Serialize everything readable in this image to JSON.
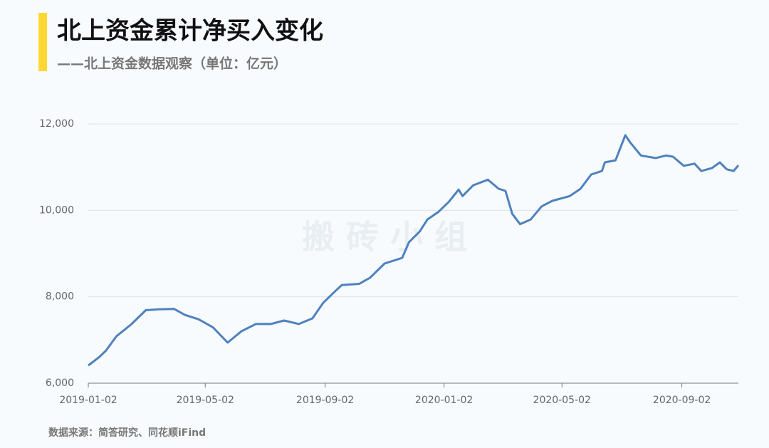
{
  "chart_data": {
    "type": "line",
    "title": "北上资金累计净买入变化",
    "subtitle": "——北上资金数据观察（单位：亿元）",
    "watermark": "搬 砖 小 组",
    "source": "数据来源：简答研究、同花顺iFind",
    "x": [
      "2019-01-02",
      "2019-01-13",
      "2019-01-20",
      "2019-01-31",
      "2019-02-15",
      "2019-03-02",
      "2019-03-16",
      "2019-03-31",
      "2019-04-11",
      "2019-04-25",
      "2019-05-10",
      "2019-05-25",
      "2019-06-08",
      "2019-06-23",
      "2019-07-08",
      "2019-07-22",
      "2019-08-06",
      "2019-08-20",
      "2019-08-31",
      "2019-09-10",
      "2019-09-19",
      "2019-10-07",
      "2019-10-18",
      "2019-11-02",
      "2019-11-20",
      "2019-11-27",
      "2019-12-08",
      "2019-12-16",
      "2019-12-27",
      "2020-01-07",
      "2020-01-17",
      "2020-01-21",
      "2020-02-01",
      "2020-02-16",
      "2020-02-27",
      "2020-03-05",
      "2020-03-12",
      "2020-03-20",
      "2020-03-31",
      "2020-04-11",
      "2020-04-22",
      "2020-05-10",
      "2020-05-21",
      "2020-06-01",
      "2020-06-12",
      "2020-06-15",
      "2020-06-26",
      "2020-07-06",
      "2020-07-11",
      "2020-07-22",
      "2020-08-06",
      "2020-08-17",
      "2020-08-24",
      "2020-09-04",
      "2020-09-15",
      "2020-09-22",
      "2020-10-03",
      "2020-10-11",
      "2020-10-18",
      "2020-10-25",
      "2020-10-30"
    ],
    "series": [
      {
        "color": "#4f81bd",
        "values": [
          6410,
          6600,
          6750,
          7090,
          7360,
          7690,
          7710,
          7720,
          7580,
          7480,
          7290,
          6940,
          7200,
          7370,
          7370,
          7450,
          7370,
          7500,
          7860,
          8080,
          8270,
          8300,
          8440,
          8770,
          8900,
          9260,
          9510,
          9790,
          9960,
          10200,
          10480,
          10330,
          10580,
          10710,
          10500,
          10450,
          9920,
          9680,
          9790,
          10090,
          10220,
          10330,
          10500,
          10830,
          10910,
          11110,
          11160,
          11740,
          11570,
          11270,
          11210,
          11270,
          11240,
          11030,
          11080,
          10910,
          10980,
          11110,
          10950,
          10910,
          11040
        ]
      }
    ],
    "xlim": [
      "2019-01-02",
      "2020-10-30"
    ],
    "xticks": [
      "2019-01-02",
      "2019-05-02",
      "2019-09-02",
      "2020-01-02",
      "2020-05-02",
      "2020-09-02"
    ],
    "ylim": [
      6000,
      12000
    ],
    "yticks": [
      {
        "value": 6000,
        "label": "6,000"
      },
      {
        "value": 8000,
        "label": "8,000"
      },
      {
        "value": 10000,
        "label": "10,000"
      },
      {
        "value": 12000,
        "label": "12,000"
      }
    ],
    "grid": true
  }
}
